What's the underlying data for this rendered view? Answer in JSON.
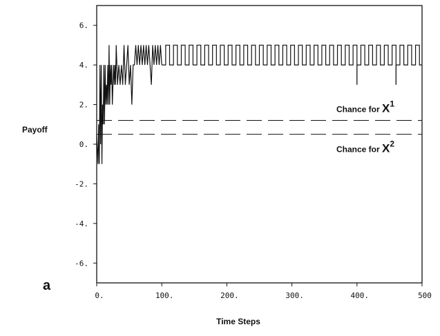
{
  "chart_data": {
    "type": "line",
    "panel_label": "a",
    "xlabel": "Time Steps",
    "ylabel": "Payoff",
    "xlim": [
      0,
      500
    ],
    "ylim": [
      -7,
      7
    ],
    "x_ticks": [
      {
        "value": 0,
        "label": "0."
      },
      {
        "value": 100,
        "label": "100."
      },
      {
        "value": 200,
        "label": "200."
      },
      {
        "value": 300,
        "label": "300."
      },
      {
        "value": 400,
        "label": "400."
      },
      {
        "value": 500,
        "label": "500"
      }
    ],
    "y_ticks": [
      {
        "value": 6,
        "label": "6."
      },
      {
        "value": 4,
        "label": "4."
      },
      {
        "value": 2,
        "label": "2."
      },
      {
        "value": 0,
        "label": "0."
      },
      {
        "value": -2,
        "label": "-2."
      },
      {
        "value": -4,
        "label": "-4."
      },
      {
        "value": -6,
        "label": "-6."
      }
    ],
    "series": [
      {
        "style": "solid",
        "color": "#111111",
        "description": "payoff oscillating between 4 and 5 after initial transient",
        "x": [
          0,
          2,
          3,
          4,
          5,
          6,
          7,
          8,
          9,
          10,
          11,
          12,
          13,
          14,
          15,
          16,
          17,
          18,
          19,
          20,
          21,
          22,
          23,
          24,
          25,
          26,
          27,
          28,
          29,
          30,
          32,
          34,
          36,
          38,
          40,
          42,
          44,
          46,
          48,
          50,
          52,
          54,
          56,
          58,
          60,
          62,
          64,
          66,
          68,
          70,
          72,
          74,
          76,
          78,
          80,
          82,
          84,
          86,
          88,
          90,
          92,
          94,
          96,
          98,
          100
        ],
        "y": [
          0.5,
          -1,
          1,
          -1,
          4,
          0,
          4,
          -1,
          2,
          1,
          4,
          1,
          4,
          2,
          3,
          2,
          4,
          2,
          5,
          2,
          4,
          3,
          4,
          2,
          3,
          4,
          3,
          4,
          3,
          5,
          3,
          4,
          3,
          4,
          3,
          5,
          3,
          4,
          5,
          3,
          4,
          2,
          4,
          4,
          5,
          4,
          5,
          4,
          5,
          4,
          5,
          4,
          5,
          4,
          5,
          4,
          3,
          5,
          4,
          5,
          4,
          5,
          4,
          5,
          4
        ]
      },
      {
        "style": "square-wave",
        "color": "#111111",
        "description": "periodic oscillation between payoffs 4 and 5",
        "x_start": 100,
        "x_end": 500,
        "low": 4,
        "high": 5,
        "period": 12,
        "dips": [
          {
            "x": 400,
            "y": 3
          },
          {
            "x": 460,
            "y": 3
          }
        ]
      }
    ],
    "reference_lines": [
      {
        "label_prefix": "Chance for ",
        "label_var": "X",
        "label_sup": "1",
        "y": 1.2,
        "style": "dashed"
      },
      {
        "label_prefix": "Chance for ",
        "label_var": "X",
        "label_sup": "2",
        "y": 0.5,
        "style": "dashed"
      }
    ]
  }
}
